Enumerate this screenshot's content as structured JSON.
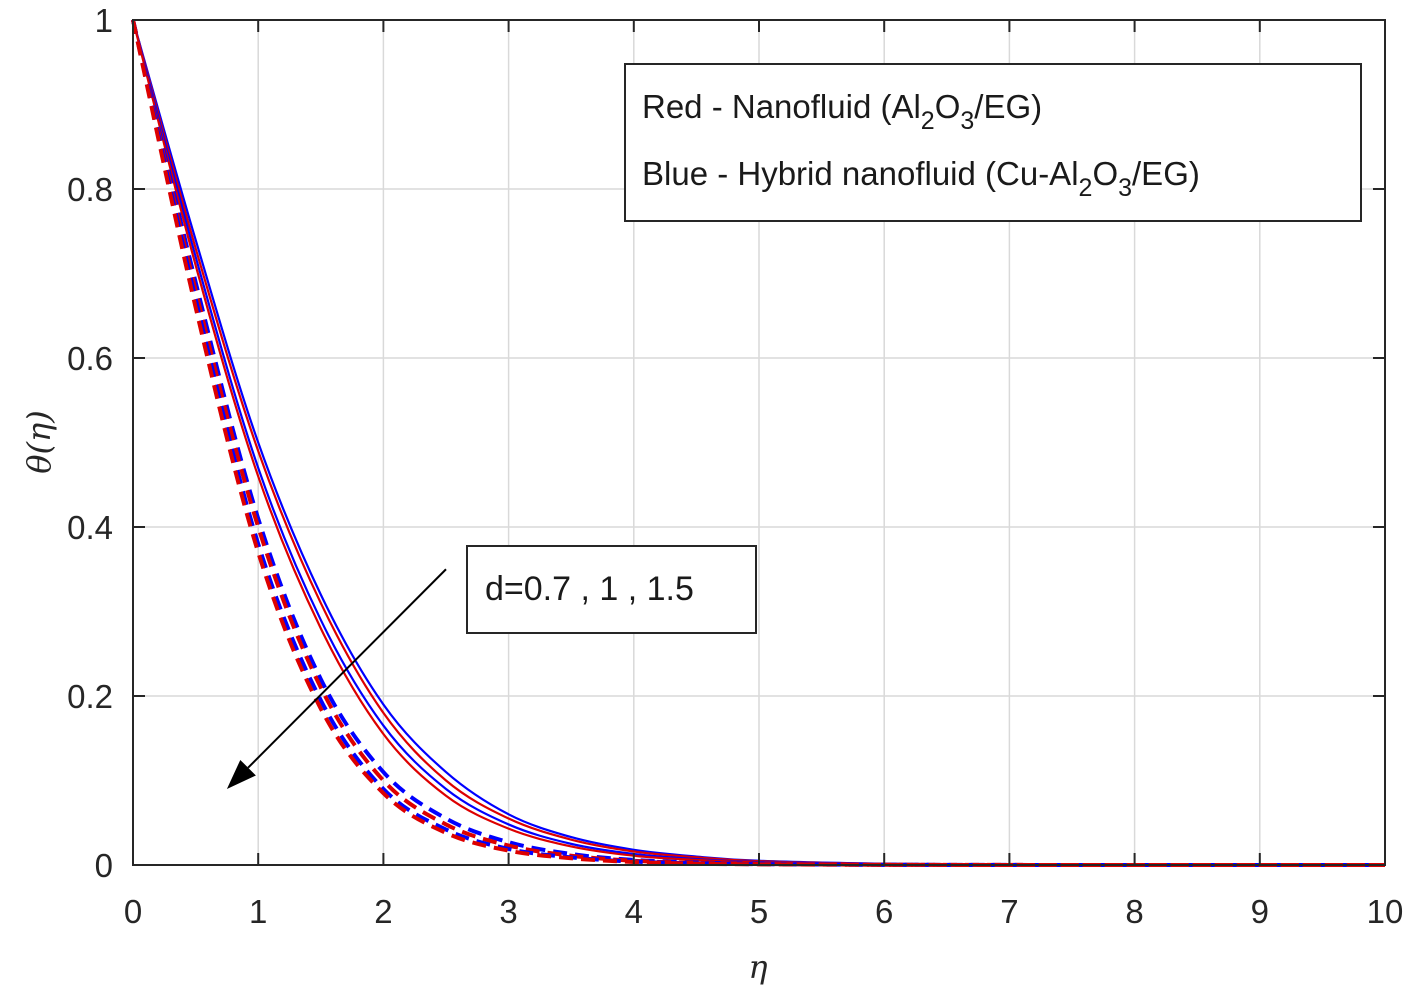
{
  "chart_data": {
    "type": "line",
    "xlabel": "η",
    "ylabel": "θ(η)",
    "xlim": [
      0,
      10
    ],
    "ylim": [
      0,
      1
    ],
    "xticks": [
      "0",
      "1",
      "2",
      "3",
      "4",
      "5",
      "6",
      "7",
      "8",
      "9",
      "10"
    ],
    "yticks": [
      "0",
      "0.2",
      "0.4",
      "0.6",
      "0.8",
      "1"
    ],
    "grid": true,
    "legend": {
      "placement": "top-right",
      "line1": {
        "prefix": "Red - Nanofluid (Al",
        "sub1": "2",
        "mid": "O",
        "sub2": "3",
        "suffix": "/EG)"
      },
      "line2": {
        "prefix": "Blue - Hybrid nanofluid (Cu-Al",
        "sub1": "2",
        "mid": "O",
        "sub2": "3",
        "suffix": "/EG)"
      }
    },
    "annotation": {
      "text": "d=0.7 , 1 , 1.5",
      "arrow_from": [
        2.5,
        0.35
      ],
      "arrow_to": [
        0.75,
        0.09
      ]
    },
    "series": [
      {
        "color": "#0000ff",
        "style": "solid",
        "x": [
          0,
          0.5,
          1,
          1.5,
          2,
          2.5,
          3,
          3.5,
          4,
          4.5,
          5,
          6,
          7,
          8,
          10
        ],
        "y": [
          1,
          0.74,
          0.5,
          0.32,
          0.19,
          0.11,
          0.06,
          0.033,
          0.018,
          0.01,
          0.005,
          0.0015,
          0.0004,
          0.0001,
          0
        ]
      },
      {
        "color": "#dd0000",
        "style": "solid",
        "x": [
          0,
          0.5,
          1,
          1.5,
          2,
          2.5,
          3,
          3.5,
          4,
          4.5,
          5,
          6,
          7,
          8,
          10
        ],
        "y": [
          1,
          0.73,
          0.49,
          0.31,
          0.18,
          0.1,
          0.055,
          0.03,
          0.016,
          0.009,
          0.0045,
          0.0013,
          0.0003,
          0.0001,
          0
        ]
      },
      {
        "color": "#0000ff",
        "style": "solid",
        "x": [
          0,
          0.5,
          1,
          1.5,
          2,
          2.5,
          3,
          3.5,
          4,
          4.5,
          5,
          6,
          7,
          8,
          10
        ],
        "y": [
          1,
          0.72,
          0.47,
          0.29,
          0.165,
          0.09,
          0.048,
          0.025,
          0.013,
          0.007,
          0.0035,
          0.001,
          0.0002,
          0.0001,
          0
        ]
      },
      {
        "color": "#dd0000",
        "style": "solid",
        "x": [
          0,
          0.5,
          1,
          1.5,
          2,
          2.5,
          3,
          3.5,
          4,
          4.5,
          5,
          6,
          7,
          8,
          10
        ],
        "y": [
          1,
          0.71,
          0.46,
          0.28,
          0.155,
          0.082,
          0.043,
          0.022,
          0.011,
          0.006,
          0.003,
          0.0008,
          0.0002,
          0,
          0
        ]
      },
      {
        "color": "#0000ff",
        "style": "dashed",
        "x": [
          0,
          0.5,
          1,
          1.5,
          2,
          2.5,
          3,
          3.5,
          4,
          4.5,
          5,
          6,
          7,
          8,
          10
        ],
        "y": [
          1,
          0.69,
          0.41,
          0.22,
          0.11,
          0.055,
          0.027,
          0.013,
          0.006,
          0.003,
          0.0015,
          0.0004,
          0.0001,
          0,
          0
        ]
      },
      {
        "color": "#dd0000",
        "style": "dashed",
        "x": [
          0,
          0.5,
          1,
          1.5,
          2,
          2.5,
          3,
          3.5,
          4,
          4.5,
          5,
          6,
          7,
          8,
          10
        ],
        "y": [
          1,
          0.68,
          0.4,
          0.21,
          0.1,
          0.048,
          0.023,
          0.011,
          0.005,
          0.0025,
          0.0012,
          0.0003,
          0.0001,
          0,
          0
        ]
      },
      {
        "color": "#0000ff",
        "style": "dashed",
        "x": [
          0,
          0.5,
          1,
          1.5,
          2,
          2.5,
          3,
          3.5,
          4,
          4.5,
          5,
          6,
          7,
          8,
          10
        ],
        "y": [
          1,
          0.67,
          0.38,
          0.195,
          0.09,
          0.042,
          0.019,
          0.009,
          0.004,
          0.002,
          0.001,
          0.0002,
          0,
          0,
          0
        ]
      },
      {
        "color": "#dd0000",
        "style": "dashed",
        "x": [
          0,
          0.5,
          1,
          1.5,
          2,
          2.5,
          3,
          3.5,
          4,
          4.5,
          5,
          6,
          7,
          8,
          10
        ],
        "y": [
          1,
          0.66,
          0.37,
          0.185,
          0.085,
          0.038,
          0.017,
          0.008,
          0.0035,
          0.0016,
          0.0008,
          0.0002,
          0,
          0,
          0
        ]
      }
    ]
  }
}
